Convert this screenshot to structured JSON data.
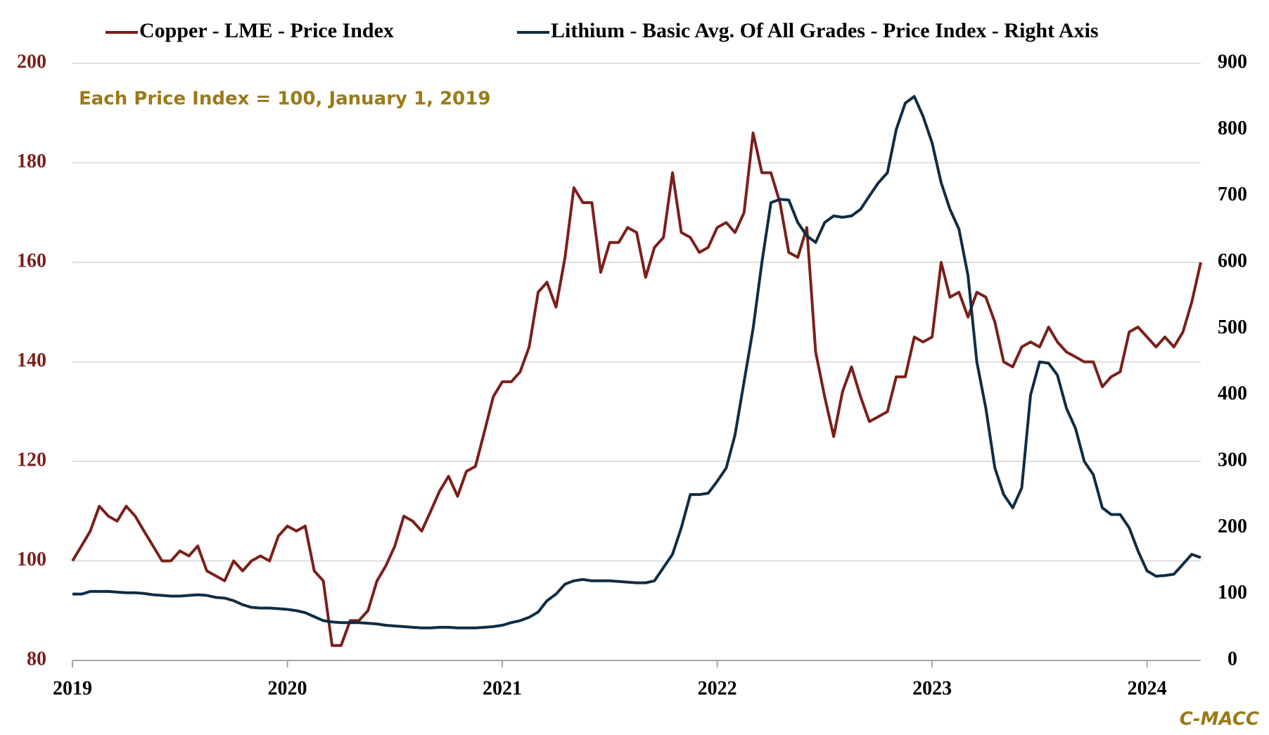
{
  "chart_data": {
    "type": "line",
    "annotation": "Each Price Index = 100, January 1, 2019",
    "source": "C-MACC",
    "legend": "top",
    "grid": true,
    "xlim": [
      2019,
      2024.25
    ],
    "xticks": [
      2019,
      2020,
      2021,
      2022,
      2023,
      2024
    ],
    "ylim": [
      80,
      200
    ],
    "yticks": [
      80,
      100,
      120,
      140,
      160,
      180,
      200
    ],
    "y2lim": [
      0,
      900
    ],
    "y2ticks": [
      0,
      100,
      200,
      300,
      400,
      500,
      600,
      700,
      800,
      900
    ],
    "x": [
      2019,
      2019.042,
      2019.083,
      2019.125,
      2019.167,
      2019.208,
      2019.25,
      2019.292,
      2019.333,
      2019.375,
      2019.417,
      2019.458,
      2019.5,
      2019.542,
      2019.583,
      2019.625,
      2019.667,
      2019.708,
      2019.75,
      2019.792,
      2019.833,
      2019.875,
      2019.917,
      2019.958,
      2020,
      2020.042,
      2020.083,
      2020.125,
      2020.167,
      2020.208,
      2020.25,
      2020.292,
      2020.333,
      2020.375,
      2020.417,
      2020.458,
      2020.5,
      2020.542,
      2020.583,
      2020.625,
      2020.667,
      2020.708,
      2020.75,
      2020.792,
      2020.833,
      2020.875,
      2020.917,
      2020.958,
      2021,
      2021.042,
      2021.083,
      2021.125,
      2021.167,
      2021.208,
      2021.25,
      2021.292,
      2021.333,
      2021.375,
      2021.417,
      2021.458,
      2021.5,
      2021.542,
      2021.583,
      2021.625,
      2021.667,
      2021.708,
      2021.75,
      2021.792,
      2021.833,
      2021.875,
      2021.917,
      2021.958,
      2022,
      2022.042,
      2022.083,
      2022.125,
      2022.167,
      2022.208,
      2022.25,
      2022.292,
      2022.333,
      2022.375,
      2022.417,
      2022.458,
      2022.5,
      2022.542,
      2022.583,
      2022.625,
      2022.667,
      2022.708,
      2022.75,
      2022.792,
      2022.833,
      2022.875,
      2022.917,
      2022.958,
      2023,
      2023.042,
      2023.083,
      2023.125,
      2023.167,
      2023.208,
      2023.25,
      2023.292,
      2023.333,
      2023.375,
      2023.417,
      2023.458,
      2023.5,
      2023.542,
      2023.583,
      2023.625,
      2023.667,
      2023.708,
      2023.75,
      2023.792,
      2023.833,
      2023.875,
      2023.917,
      2023.958,
      2024,
      2024.042,
      2024.083,
      2024.125,
      2024.167,
      2024.208,
      2024.25
    ],
    "series": [
      {
        "name": "Copper - LME - Price Index",
        "color": "#7b1f1a",
        "values": [
          100,
          103,
          106,
          111,
          109,
          108,
          111,
          109,
          106,
          103,
          100,
          100,
          102,
          101,
          103,
          98,
          97,
          96,
          100,
          98,
          100,
          101,
          100,
          105,
          107,
          106,
          107,
          98,
          96,
          83,
          83,
          88,
          88,
          90,
          96,
          99,
          103,
          109,
          108,
          106,
          110,
          114,
          117,
          113,
          118,
          119,
          126,
          133,
          136,
          136,
          138,
          143,
          154,
          156,
          151,
          161,
          175,
          172,
          172,
          158,
          164,
          164,
          167,
          166,
          157,
          163,
          165,
          178,
          166,
          165,
          162,
          163,
          167,
          168,
          166,
          170,
          186,
          178,
          178,
          172,
          162,
          161,
          167,
          142,
          133,
          125,
          134,
          139,
          133,
          128,
          129,
          130,
          137,
          137,
          145,
          144,
          145,
          160,
          153,
          154,
          149,
          154,
          153,
          148,
          140,
          139,
          143,
          144,
          143,
          147,
          144,
          142,
          141,
          140,
          140,
          135,
          137,
          138,
          146,
          147,
          145,
          143,
          145,
          143,
          146,
          152,
          160
        ]
      },
      {
        "name": "Lithium - Basic Avg. Of All Grades - Price Index - Right Axis",
        "color": "#0f2d45",
        "axis": "y2",
        "values": [
          100,
          100,
          104,
          104,
          104,
          103,
          102,
          102,
          101,
          99,
          98,
          97,
          97,
          98,
          99,
          98,
          95,
          94,
          90,
          84,
          80,
          79,
          79,
          78,
          77,
          75,
          72,
          66,
          60,
          58,
          57,
          57,
          57,
          56,
          55,
          53,
          52,
          51,
          50,
          49,
          49,
          50,
          50,
          49,
          49,
          49,
          50,
          51,
          53,
          57,
          60,
          65,
          73,
          90,
          100,
          115,
          120,
          122,
          120,
          120,
          120,
          119,
          118,
          117,
          117,
          120,
          140,
          160,
          200,
          250,
          250,
          252,
          270,
          290,
          340,
          420,
          500,
          600,
          690,
          695,
          694,
          660,
          640,
          630,
          660,
          670,
          668,
          670,
          680,
          700,
          720,
          735,
          800,
          840,
          850,
          820,
          780,
          720,
          680,
          650,
          580,
          450,
          380,
          290,
          250,
          230,
          260,
          400,
          450,
          448,
          430,
          380,
          350,
          300,
          280,
          230,
          220,
          220,
          200,
          165,
          135,
          127,
          128,
          130,
          145,
          160,
          155
        ]
      }
    ]
  }
}
